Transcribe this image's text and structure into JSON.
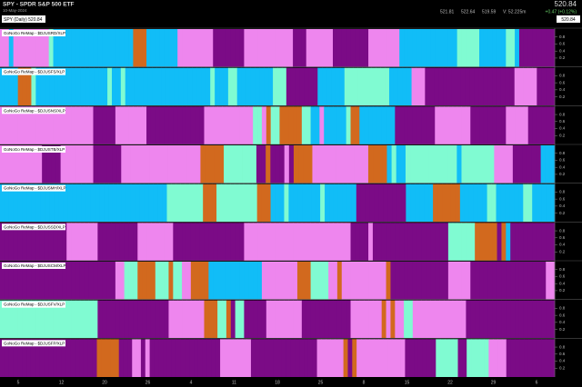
{
  "header": {
    "title": "SPY - SPDR S&P 500 ETF",
    "date": "10-May-2024",
    "price": "520.84",
    "open": "521.81",
    "high": "522.64",
    "low": "519.59",
    "volume": "V: 52.225m",
    "change": "+0.47 (+0.12%)"
  },
  "main": {
    "label": "SPY (Daily) 520.84",
    "price": "520.84"
  },
  "palette": {
    "P": "#7b0b86",
    "L": "#ee86ee",
    "B": "#11bdf7",
    "T": "#80fbd2",
    "O": "#d2691e"
  },
  "ylim": [
    0,
    1
  ],
  "yticks": [
    0.2,
    0.4,
    0.6,
    0.8
  ],
  "x_labels": [
    "5",
    "12",
    "20",
    "26",
    "4",
    "11",
    "18",
    "25",
    "8",
    "15",
    "22",
    "29",
    "6"
  ],
  "panels": [
    {
      "label": "GoNoGo ReMap - $DJUSRD/XLP",
      "codes": "LLBLLLLLLLLTBBBBBBBBBBBBBBBBBBOOOBBBBBBBLLLLLLLLPPPPPPPLLLLLLLLLLLPPPLLLLLLPPPPPPPPLLLLLLLBBBBBBBBBBBBBTTTTTBBBBBBTTBPPPPPPPP"
    },
    {
      "label": "GoNoGo ReMap - $DJUSFS/XLP",
      "codes": "BBBBOOOTBBBBBBBBBBBBBBBBTBBTBBBBBBBBBBBBBBBBBBBTBBBTTBBBBBBBBTTTPPPPPPPBBBBBBTTTTTTTTTTBBBBBLLLPPPPPPPPPPPPPPPPPPPPLLLLLPPPP"
    },
    {
      "label": "GoNoGo ReMap - $DJUSNS/XLP",
      "codes": "LLLLLLLLLLLLLLLLLLLLLPPPPPLLLLLLLPPPPPPPPPPPPPLLLLLLLLLLLTTLOTTOOOOOTTBBLBBBBBTOOBBBBBBBBPPPPPPPPPLLLLLLLLPPPPPPPPLLLLLPPPPPP"
    },
    {
      "label": "GoNoGo ReMap - $DJUSTB/XLP",
      "codes": "LLLLLLLLLPPPPLLLLLLLPPPPPPLLLLLLLLLLLLLLLLLOOOOOTTTTTTTPPOPPPLPOOOOLLLLLLLLLLLLOOOOBTBBTTTTTTTTTTTBTTTTTTTLLLLPPPPPPBBB"
    },
    {
      "label": "GoNoGo ReMap - $DJUSMH/XLP",
      "codes": "BBBBBBBBBBBBBBBBBBBBBBBBBBBBBBBBBBBBBTTTTTTTTOOOTTTTTTTTTOOOBBBTBBBBBBBTBBBBBBBPPPPPPPPPPPBBBBBBOOOOOOBBBBBBTTBBBBBBTTBBBBB"
    },
    {
      "label": "GoNoGo ReMap - $DJUSSD/XLP",
      "codes": "PPPPPPPPPPPPPPPLLLLLLLPPPPPPPPPLLLLLLLLPPPPPPPPPPPPPPPPLLLLLLLLLLLLLLLLLLLLLLLLPPPPLPPPPPPPPPPPPPPPPPTTTTTTOOOOOPOBPPPPPPPPPP"
    },
    {
      "label": "GoNoGo ReMap - $DJUSCM/XLP",
      "codes": "PPPPPPPPPPPPPPPPPPPPPPPPPPLLTTTOOOOTTTOTTLLOOOOBBBBBBBBBBBBLLLLLLLLOOOTTTTLLOLLLLLLLLLLOPPPPPPPPPPPPPLLLLLPPPPPPPPPPPPPPPPPLL"
    },
    {
      "label": "GoNoGo ReMap - $DJUSFV/XLP",
      "codes": "TTTTTTTTTTTTTTTTTTTTTTPPPPPPPPPPPPPPPPLLLLLLLLOOOTTOPTTPPPPPLLLLLLLLPPPPPPPPPPPLLLLLLLOLOLLTTLLLLLLLLLLLLPPPPPPPPPPPPPPPPPPPP"
    },
    {
      "label": "GoNoGo ReMap - $DJUSFP/XLP",
      "codes": "PPPPPPPPPPPPPPPPPPPPPPOOOOOPPPLLPLPPPPPPPPPPPPPPPPLLLLLLLPPPPPPPPPPPPPPPLLLLLLOPOLLLLLLLLLLLPPPPPPPTTTTTPPTTTTTLLLLPPPPPPPPPPP"
    }
  ]
}
